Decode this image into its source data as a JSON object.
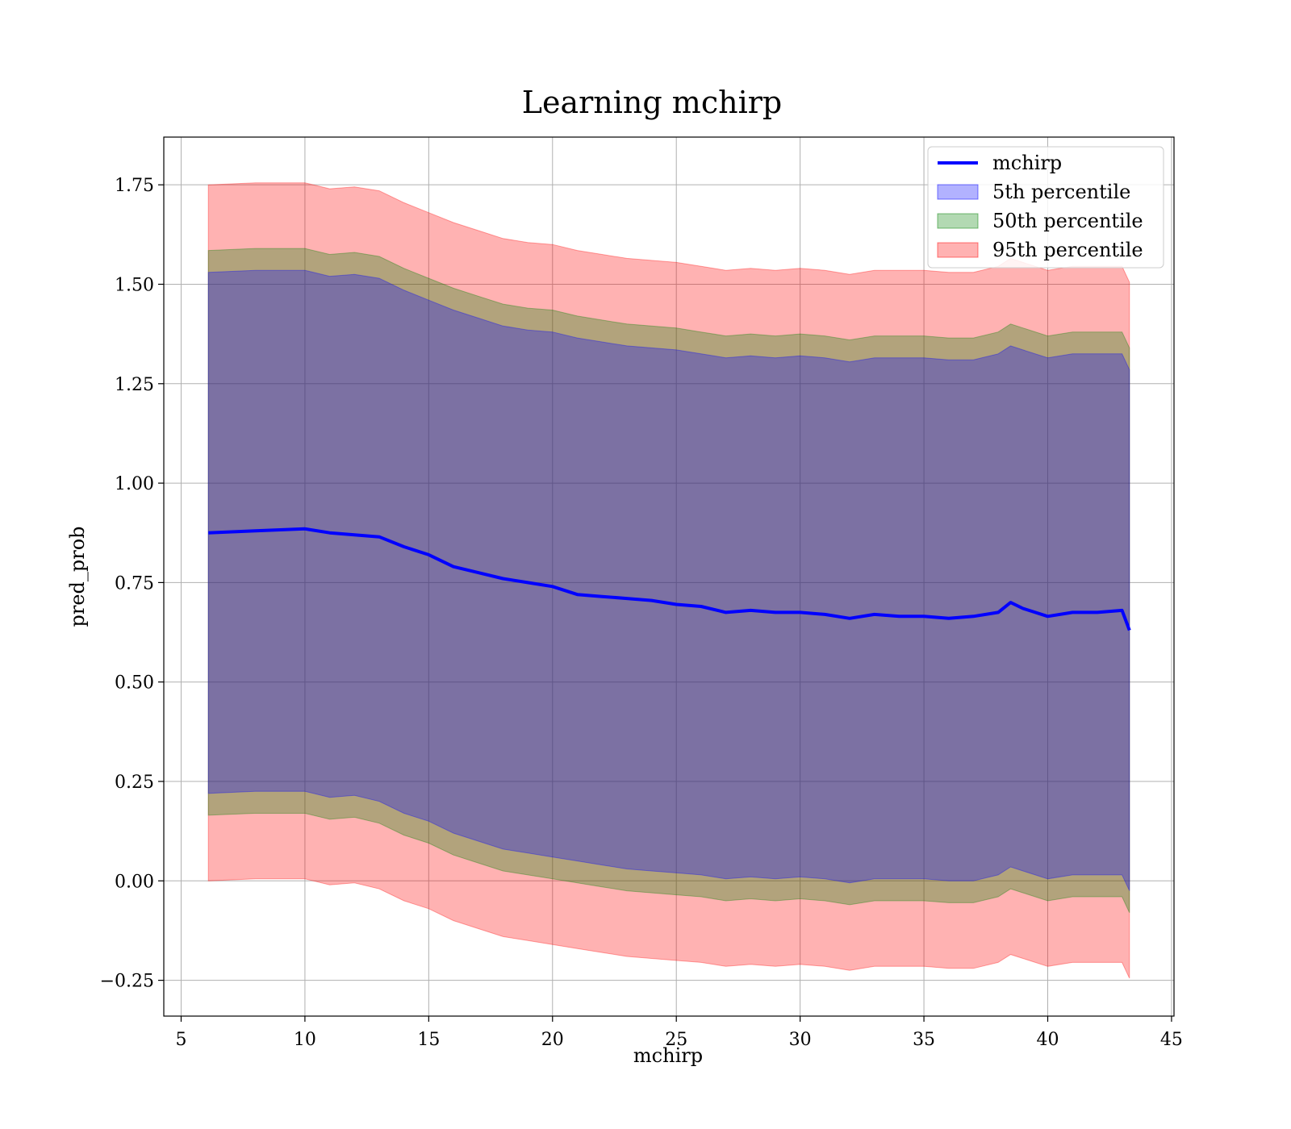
{
  "chart_data": {
    "type": "area",
    "title": "Learning mchirp",
    "xlabel": "mchirp",
    "ylabel": "pred_prob",
    "xlim": [
      4.3,
      45.1
    ],
    "ylim": [
      -0.34,
      1.87
    ],
    "xticks": [
      5,
      10,
      15,
      20,
      25,
      30,
      35,
      40,
      45
    ],
    "xtick_labels": [
      "5",
      "10",
      "15",
      "20",
      "25",
      "30",
      "35",
      "40",
      "45"
    ],
    "yticks": [
      -0.25,
      0.0,
      0.25,
      0.5,
      0.75,
      1.0,
      1.25,
      1.5,
      1.75
    ],
    "ytick_labels": [
      "−0.25",
      "0.00",
      "0.25",
      "0.50",
      "0.75",
      "1.00",
      "1.25",
      "1.50",
      "1.75"
    ],
    "grid": true,
    "legend_position": "top-right",
    "x": [
      6.1,
      8,
      10,
      11,
      12,
      13,
      14,
      15,
      16,
      17,
      18,
      19,
      20,
      21,
      22,
      23,
      24,
      25,
      26,
      27,
      28,
      29,
      30,
      31,
      32,
      33,
      34,
      35,
      36,
      37,
      38,
      38.5,
      39,
      40,
      41,
      42,
      43,
      43.3
    ],
    "line": {
      "name": "mchirp",
      "color": "#0000ff",
      "values": [
        0.875,
        0.88,
        0.885,
        0.875,
        0.87,
        0.865,
        0.84,
        0.82,
        0.79,
        0.775,
        0.76,
        0.75,
        0.74,
        0.72,
        0.715,
        0.71,
        0.705,
        0.695,
        0.69,
        0.675,
        0.68,
        0.675,
        0.675,
        0.67,
        0.66,
        0.67,
        0.665,
        0.665,
        0.66,
        0.665,
        0.675,
        0.7,
        0.685,
        0.665,
        0.675,
        0.675,
        0.68,
        0.63
      ]
    },
    "bands": [
      {
        "name": "95th percentile",
        "color": "#ff0000",
        "opacity": 0.3,
        "upper": [
          1.75,
          1.755,
          1.755,
          1.74,
          1.745,
          1.735,
          1.705,
          1.68,
          1.655,
          1.635,
          1.615,
          1.605,
          1.6,
          1.585,
          1.575,
          1.565,
          1.56,
          1.555,
          1.545,
          1.535,
          1.54,
          1.535,
          1.54,
          1.535,
          1.525,
          1.535,
          1.535,
          1.535,
          1.53,
          1.53,
          1.545,
          1.565,
          1.555,
          1.535,
          1.545,
          1.545,
          1.545,
          1.505
        ],
        "lower": [
          0.0,
          0.005,
          0.005,
          -0.01,
          -0.005,
          -0.02,
          -0.05,
          -0.07,
          -0.1,
          -0.12,
          -0.14,
          -0.15,
          -0.16,
          -0.17,
          -0.18,
          -0.19,
          -0.195,
          -0.2,
          -0.205,
          -0.215,
          -0.21,
          -0.215,
          -0.21,
          -0.215,
          -0.225,
          -0.215,
          -0.215,
          -0.215,
          -0.22,
          -0.22,
          -0.205,
          -0.185,
          -0.195,
          -0.215,
          -0.205,
          -0.205,
          -0.205,
          -0.245
        ]
      },
      {
        "name": "50th percentile",
        "color": "#008000",
        "opacity": 0.3,
        "upper": [
          1.585,
          1.59,
          1.59,
          1.575,
          1.58,
          1.57,
          1.54,
          1.515,
          1.49,
          1.47,
          1.45,
          1.44,
          1.435,
          1.42,
          1.41,
          1.4,
          1.395,
          1.39,
          1.38,
          1.37,
          1.375,
          1.37,
          1.375,
          1.37,
          1.36,
          1.37,
          1.37,
          1.37,
          1.365,
          1.365,
          1.38,
          1.4,
          1.39,
          1.37,
          1.38,
          1.38,
          1.38,
          1.34
        ],
        "lower": [
          0.165,
          0.17,
          0.17,
          0.155,
          0.16,
          0.145,
          0.115,
          0.095,
          0.065,
          0.045,
          0.025,
          0.015,
          0.005,
          -0.005,
          -0.015,
          -0.025,
          -0.03,
          -0.035,
          -0.04,
          -0.05,
          -0.045,
          -0.05,
          -0.045,
          -0.05,
          -0.06,
          -0.05,
          -0.05,
          -0.05,
          -0.055,
          -0.055,
          -0.04,
          -0.02,
          -0.03,
          -0.05,
          -0.04,
          -0.04,
          -0.04,
          -0.08
        ]
      },
      {
        "name": "5th percentile",
        "color": "#0000ff",
        "opacity": 0.3,
        "upper": [
          1.53,
          1.535,
          1.535,
          1.52,
          1.525,
          1.515,
          1.485,
          1.46,
          1.435,
          1.415,
          1.395,
          1.385,
          1.38,
          1.365,
          1.355,
          1.345,
          1.34,
          1.335,
          1.325,
          1.315,
          1.32,
          1.315,
          1.32,
          1.315,
          1.305,
          1.315,
          1.315,
          1.315,
          1.31,
          1.31,
          1.325,
          1.345,
          1.335,
          1.315,
          1.325,
          1.325,
          1.325,
          1.285
        ],
        "lower": [
          0.22,
          0.225,
          0.225,
          0.21,
          0.215,
          0.2,
          0.17,
          0.15,
          0.12,
          0.1,
          0.08,
          0.07,
          0.06,
          0.05,
          0.04,
          0.03,
          0.025,
          0.02,
          0.015,
          0.005,
          0.01,
          0.005,
          0.01,
          0.005,
          -0.005,
          0.005,
          0.005,
          0.005,
          0.0,
          0.0,
          0.015,
          0.035,
          0.025,
          0.005,
          0.015,
          0.015,
          0.015,
          -0.025
        ]
      }
    ],
    "legend": [
      {
        "label": "mchirp",
        "kind": "line",
        "color": "#0000ff"
      },
      {
        "label": "5th percentile",
        "kind": "patch",
        "color": "#0000ff"
      },
      {
        "label": "50th percentile",
        "kind": "patch",
        "color": "#008000"
      },
      {
        "label": "95th percentile",
        "kind": "patch",
        "color": "#ff0000"
      }
    ]
  }
}
